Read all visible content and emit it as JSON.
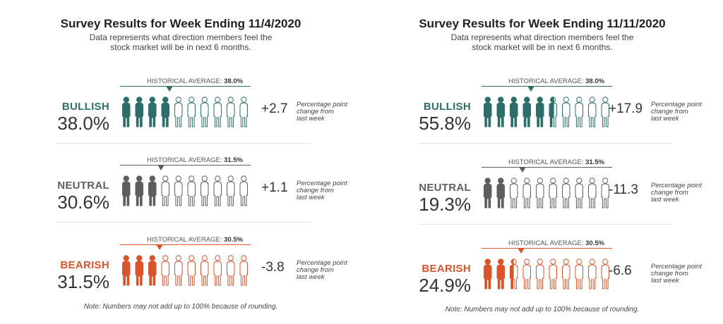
{
  "panels": [
    {
      "title": "Survey Results for Week Ending 11/4/2020",
      "subtitle_line1": "Data represents what direction members feel the",
      "subtitle_line2": "stock market will be in next 6 months.",
      "note": "Note: Numbers may not add up to 100% because of rounding."
    },
    {
      "title": "Survey Results for Week Ending 11/11/2020",
      "subtitle_line1": "Data represents what direction members feel the",
      "subtitle_line2": "stock market will be in next 6 months.",
      "note": "Note: Numbers may not add up to 100% because of rounding."
    }
  ],
  "chart_data": [
    {
      "type": "pictograph",
      "title": "Survey Results for Week Ending 11/4/2020",
      "categories": [
        {
          "name": "BULLISH",
          "value": 38.0,
          "value_label": "38.0%",
          "historical_prefix": "HISTORICAL AVERAGE:",
          "historical": 38.0,
          "historical_label": "38.0%",
          "change": 2.7,
          "change_label": "+2.7",
          "color": "#2e6e6a"
        },
        {
          "name": "NEUTRAL",
          "value": 30.6,
          "value_label": "30.6%",
          "historical_prefix": "HISTORICAL AVERAGE:",
          "historical": 31.5,
          "historical_label": "31.5%",
          "change": 1.1,
          "change_label": "+1.1",
          "color": "#5e5e5e"
        },
        {
          "name": "BEARISH",
          "value": 31.5,
          "value_label": "31.5%",
          "historical_prefix": "HISTORICAL AVERAGE:",
          "historical": 30.5,
          "historical_label": "30.5%",
          "change": -3.8,
          "change_label": "-3.8",
          "color": "#d9532b"
        }
      ],
      "change_note_line1": "Percentage point",
      "change_note_line2": "change from",
      "change_note_line3": "last week"
    },
    {
      "type": "pictograph",
      "title": "Survey Results for Week Ending 11/11/2020",
      "categories": [
        {
          "name": "BULLISH",
          "value": 55.8,
          "value_label": "55.8%",
          "historical_prefix": "HISTORICAL AVERAGE:",
          "historical": 38.0,
          "historical_label": "38.0%",
          "change": 17.9,
          "change_label": "+17.9",
          "color": "#2e6e6a"
        },
        {
          "name": "NEUTRAL",
          "value": 19.3,
          "value_label": "19.3%",
          "historical_prefix": "HISTORICAL AVERAGE:",
          "historical": 31.5,
          "historical_label": "31.5%",
          "change": -11.3,
          "change_label": "-11.3",
          "color": "#5e5e5e"
        },
        {
          "name": "BEARISH",
          "value": 24.9,
          "value_label": "24.9%",
          "historical_prefix": "HISTORICAL AVERAGE:",
          "historical": 30.5,
          "historical_label": "30.5%",
          "change": -6.6,
          "change_label": "-6.6",
          "color": "#d9532b"
        }
      ],
      "change_note_line1": "Percentage point",
      "change_note_line2": "change from",
      "change_note_line3": "last week"
    }
  ]
}
